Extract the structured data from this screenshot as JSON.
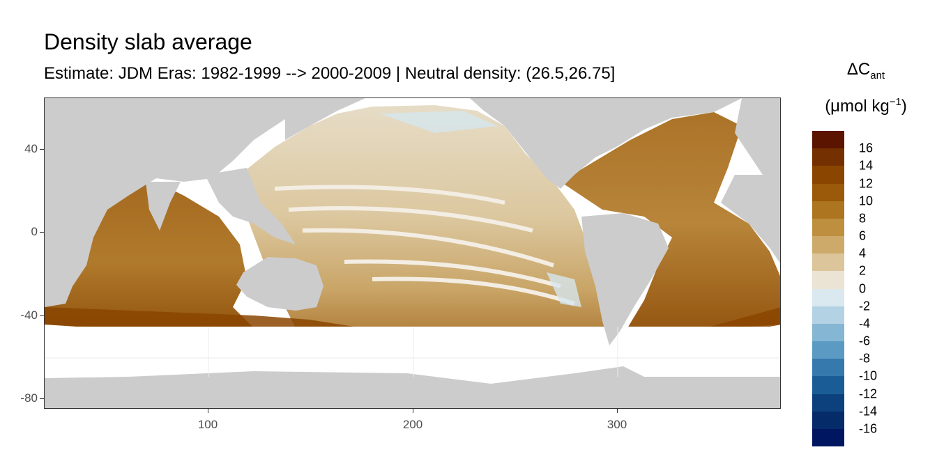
{
  "title": "Density slab average",
  "subtitle": "Estimate: JDM Eras: 1982-1999 --> 2000-2009 | Neutral density: (26.5,26.75]",
  "legend": {
    "title_main": "ΔC",
    "title_sub": "ant",
    "unit_prefix": "(μmol kg",
    "unit_sup": "−1",
    "unit_suffix": ")",
    "labels": [
      "16",
      "14",
      "12",
      "10",
      "8",
      "6",
      "4",
      "2",
      "0",
      "-2",
      "-4",
      "-6",
      "-8",
      "-10",
      "-12",
      "-14",
      "-16"
    ],
    "colors": [
      "#5a1400",
      "#743000",
      "#8a4500",
      "#9b5a0a",
      "#ad7520",
      "#be8f3f",
      "#cdaa6a",
      "#dcc59a",
      "#ebe3d3",
      "#dae8ef",
      "#b3d2e3",
      "#85b6d3",
      "#5b9bc3",
      "#3679ad",
      "#1a5d96",
      "#0d417e",
      "#052b69",
      "#001660"
    ]
  },
  "axes": {
    "x_ticks": [
      "100",
      "200",
      "300"
    ],
    "y_ticks": [
      "40",
      "0",
      "-40",
      "-80"
    ]
  },
  "map_colors": {
    "land": "#cccccc",
    "no_data": "#ffffff",
    "grid": "#ebebeb"
  }
}
